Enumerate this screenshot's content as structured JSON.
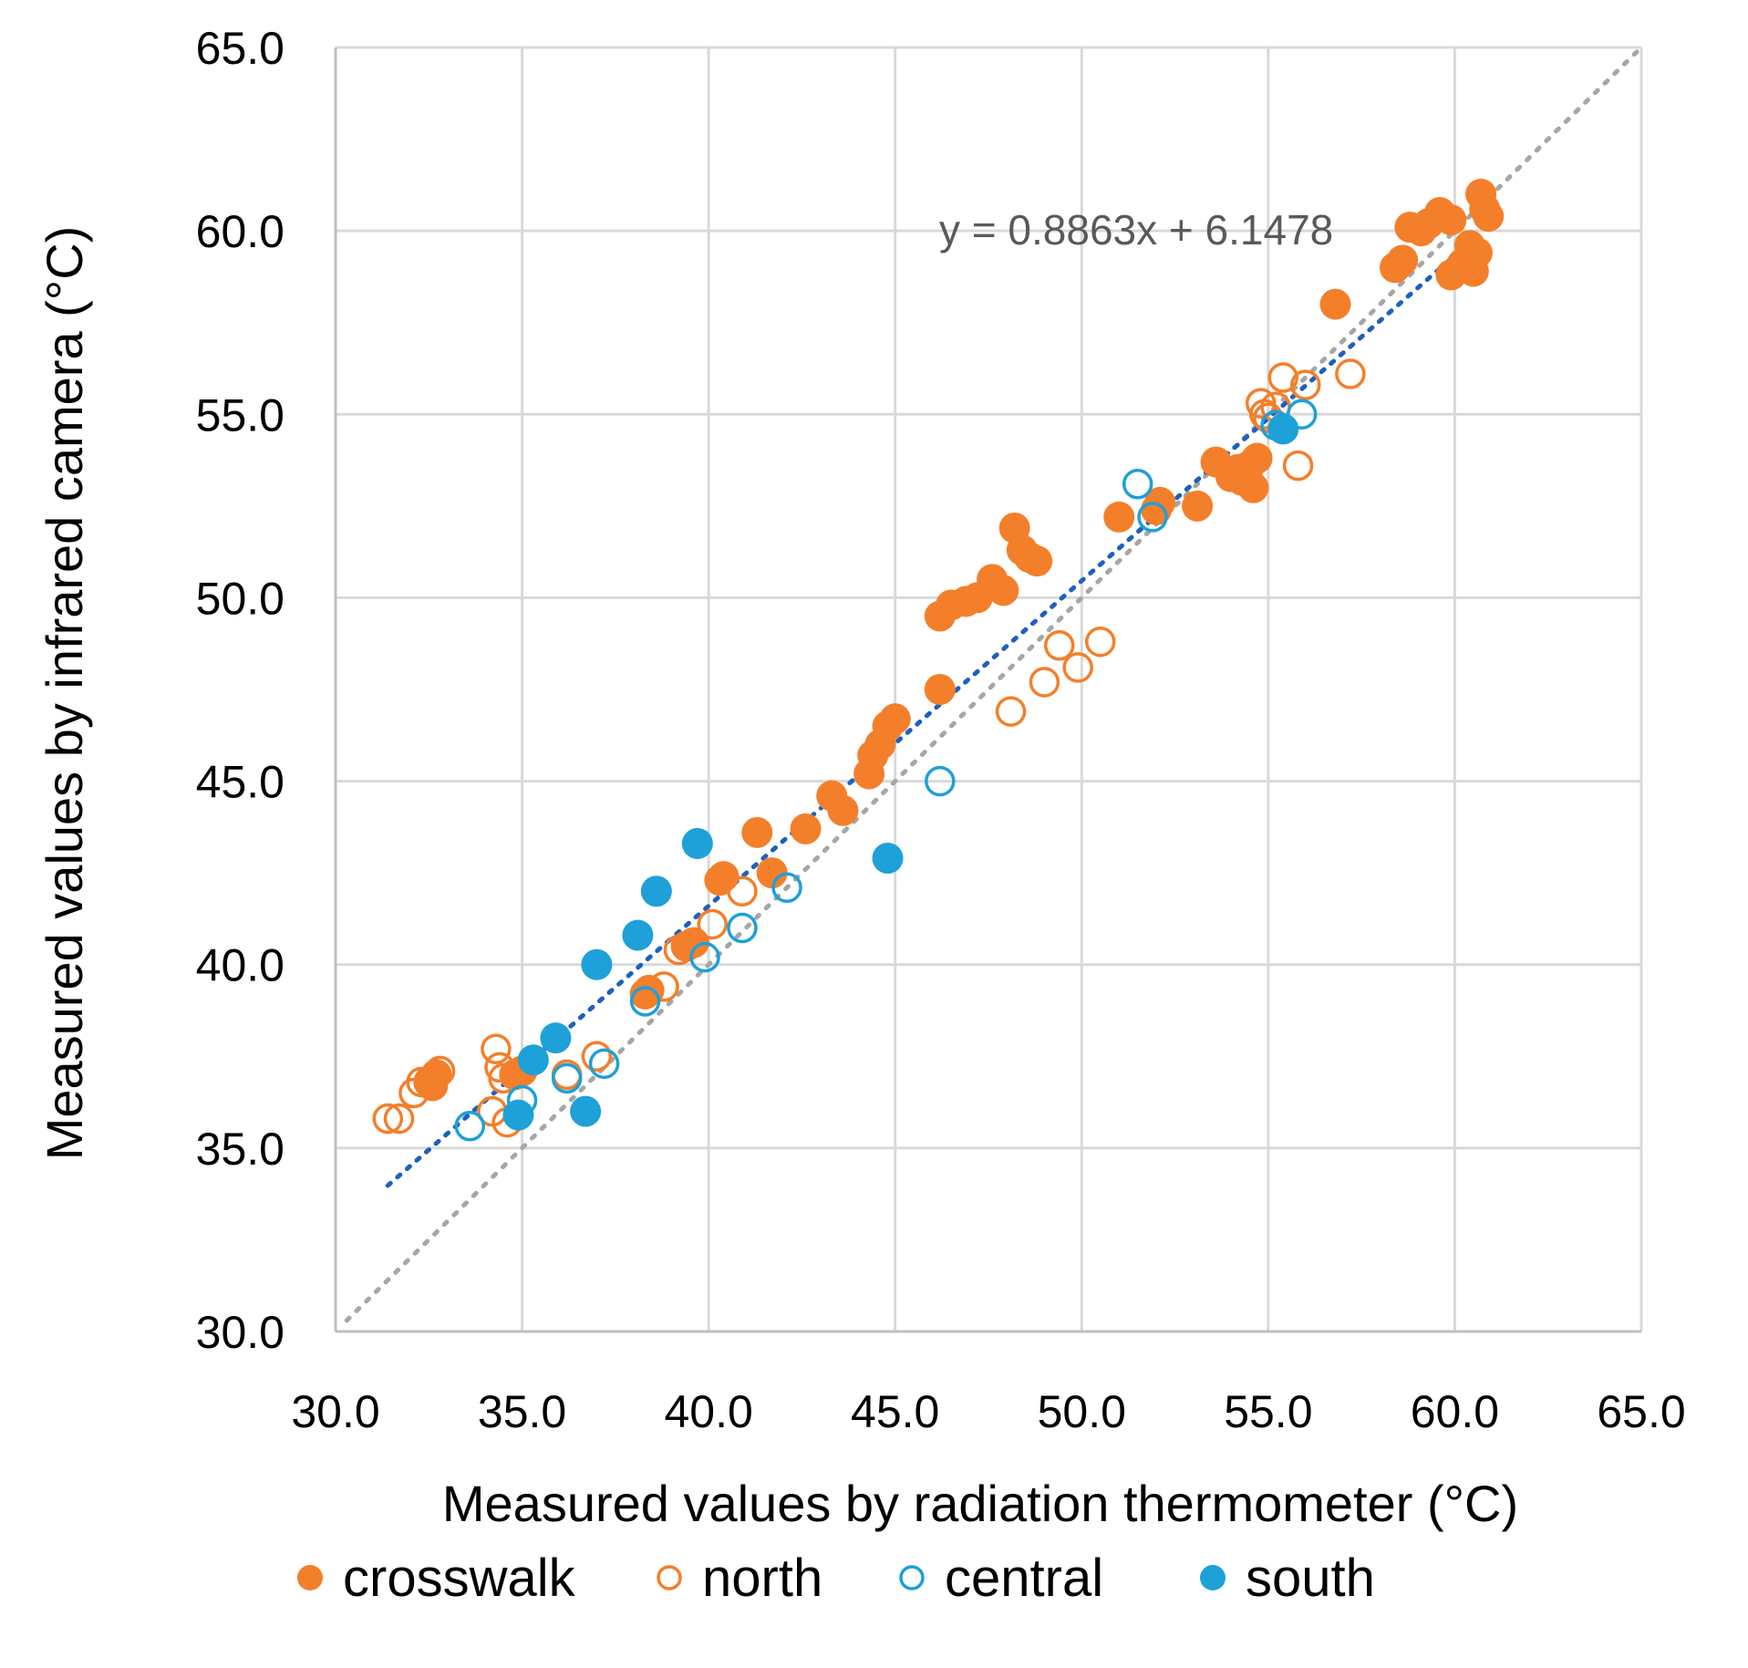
{
  "chart_data": {
    "type": "scatter",
    "xlabel": "Measured values by radiation thermometer  (°C)",
    "ylabel": "Measured values by infrared camera  (°C)",
    "xlim": [
      30,
      65
    ],
    "ylim": [
      30,
      65
    ],
    "x_ticks": [
      "30.0",
      "35.0",
      "40.0",
      "45.0",
      "50.0",
      "55.0",
      "60.0",
      "65.0"
    ],
    "y_ticks": [
      "30.0",
      "35.0",
      "40.0",
      "45.0",
      "50.0",
      "55.0",
      "60.0",
      "65.0"
    ],
    "grid": true,
    "legend_position": "bottom",
    "trendline": {
      "label": "y = 0.8863x + 6.1478",
      "slope": 0.8863,
      "intercept": 6.1478,
      "x_range": [
        31.4,
        60.7
      ],
      "color": "#1f5fbf",
      "style": "dotted"
    },
    "reference_line": {
      "slope": 1,
      "intercept": 0,
      "x_range": [
        30.3,
        65
      ],
      "color": "#a6a6a6",
      "style": "dotted"
    },
    "series": [
      {
        "name": "crosswalk",
        "marker": "filled",
        "color": "#f47f2a",
        "points": [
          [
            32.5,
            36.8
          ],
          [
            32.7,
            37.0
          ],
          [
            32.6,
            36.7
          ],
          [
            34.8,
            37.0
          ],
          [
            35.0,
            37.1
          ],
          [
            38.3,
            39.2
          ],
          [
            38.4,
            39.3
          ],
          [
            39.4,
            40.5
          ],
          [
            39.6,
            40.6
          ],
          [
            40.3,
            42.3
          ],
          [
            40.4,
            42.4
          ],
          [
            41.3,
            43.6
          ],
          [
            41.7,
            42.5
          ],
          [
            42.6,
            43.7
          ],
          [
            43.3,
            44.6
          ],
          [
            43.6,
            44.2
          ],
          [
            44.3,
            45.2
          ],
          [
            44.4,
            45.7
          ],
          [
            44.6,
            46.0
          ],
          [
            44.8,
            46.5
          ],
          [
            45.0,
            46.7
          ],
          [
            46.2,
            47.5
          ],
          [
            46.2,
            49.5
          ],
          [
            46.5,
            49.8
          ],
          [
            46.9,
            49.9
          ],
          [
            47.2,
            50.0
          ],
          [
            47.6,
            50.5
          ],
          [
            47.9,
            50.2
          ],
          [
            48.2,
            51.9
          ],
          [
            48.4,
            51.3
          ],
          [
            48.6,
            51.1
          ],
          [
            48.8,
            51.0
          ],
          [
            51.0,
            52.2
          ],
          [
            52.0,
            52.4
          ],
          [
            52.1,
            52.6
          ],
          [
            53.1,
            52.5
          ],
          [
            53.6,
            53.7
          ],
          [
            54.0,
            53.3
          ],
          [
            54.2,
            53.5
          ],
          [
            54.3,
            53.2
          ],
          [
            54.5,
            53.6
          ],
          [
            54.7,
            53.8
          ],
          [
            54.6,
            53.0
          ],
          [
            56.8,
            58.0
          ],
          [
            58.4,
            59.0
          ],
          [
            58.6,
            59.2
          ],
          [
            58.8,
            60.1
          ],
          [
            59.1,
            60.0
          ],
          [
            59.3,
            60.2
          ],
          [
            59.6,
            60.5
          ],
          [
            59.9,
            60.3
          ],
          [
            59.9,
            58.8
          ],
          [
            60.2,
            59.1
          ],
          [
            60.4,
            59.6
          ],
          [
            60.6,
            59.4
          ],
          [
            60.7,
            61.0
          ],
          [
            60.8,
            60.6
          ],
          [
            60.9,
            60.4
          ],
          [
            60.5,
            58.9
          ]
        ]
      },
      {
        "name": "north",
        "marker": "open",
        "color": "#f47f2a",
        "points": [
          [
            31.4,
            35.8
          ],
          [
            31.7,
            35.8
          ],
          [
            32.1,
            36.5
          ],
          [
            32.3,
            36.8
          ],
          [
            32.8,
            37.1
          ],
          [
            34.2,
            36.0
          ],
          [
            34.3,
            37.7
          ],
          [
            34.4,
            37.2
          ],
          [
            34.5,
            36.9
          ],
          [
            34.6,
            35.7
          ],
          [
            36.2,
            37.0
          ],
          [
            37.0,
            37.5
          ],
          [
            38.8,
            39.4
          ],
          [
            39.2,
            40.4
          ],
          [
            40.1,
            41.1
          ],
          [
            40.9,
            42.0
          ],
          [
            48.1,
            46.9
          ],
          [
            49.0,
            47.7
          ],
          [
            49.4,
            48.7
          ],
          [
            49.9,
            48.1
          ],
          [
            50.5,
            48.8
          ],
          [
            54.8,
            55.3
          ],
          [
            54.9,
            55.0
          ],
          [
            55.0,
            54.9
          ],
          [
            55.2,
            55.2
          ],
          [
            55.4,
            56.0
          ],
          [
            55.8,
            53.6
          ],
          [
            56.0,
            55.8
          ],
          [
            57.2,
            56.1
          ]
        ]
      },
      {
        "name": "central",
        "marker": "open",
        "color": "#1ea0d8",
        "points": [
          [
            33.6,
            35.6
          ],
          [
            35.0,
            36.3
          ],
          [
            36.2,
            36.9
          ],
          [
            37.2,
            37.3
          ],
          [
            38.3,
            39.0
          ],
          [
            39.9,
            40.2
          ],
          [
            40.9,
            41.0
          ],
          [
            42.1,
            42.1
          ],
          [
            46.2,
            45.0
          ],
          [
            51.5,
            53.1
          ],
          [
            51.9,
            52.2
          ],
          [
            55.2,
            54.7
          ],
          [
            55.9,
            55.0
          ]
        ]
      },
      {
        "name": "south",
        "marker": "filled",
        "color": "#1ea0d8",
        "points": [
          [
            34.9,
            35.9
          ],
          [
            35.3,
            37.4
          ],
          [
            35.9,
            38.0
          ],
          [
            36.7,
            36.0
          ],
          [
            37.0,
            40.0
          ],
          [
            38.1,
            40.8
          ],
          [
            38.6,
            42.0
          ],
          [
            39.7,
            43.3
          ],
          [
            44.8,
            42.9
          ],
          [
            55.4,
            54.6
          ]
        ]
      }
    ]
  }
}
